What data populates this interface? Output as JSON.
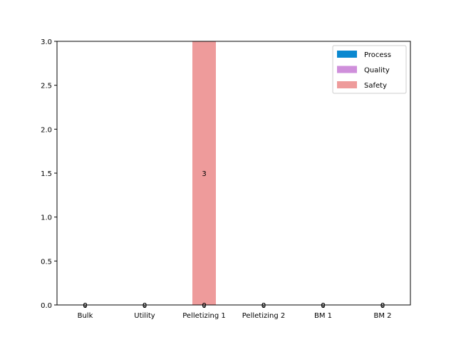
{
  "chart_data": {
    "type": "bar",
    "stacked": true,
    "categories": [
      "Bulk",
      "Utility",
      "Pelletizing 1",
      "Pelletizing 2",
      "BM 1",
      "BM 2"
    ],
    "series": [
      {
        "name": "Process",
        "color": "#0a88d0",
        "values": [
          0,
          0,
          0,
          0,
          0,
          0
        ]
      },
      {
        "name": "Quality",
        "color": "#cf8fdb",
        "values": [
          0,
          0,
          0,
          0,
          0,
          0
        ]
      },
      {
        "name": "Safety",
        "color": "#ee9b9b",
        "values": [
          0,
          0,
          3,
          0,
          0,
          0
        ]
      }
    ],
    "data_labels": [
      [
        "0",
        "0",
        "0",
        "0",
        "0",
        "0"
      ],
      [
        "0",
        "0",
        "0",
        "0",
        "0",
        "0"
      ],
      [
        "0",
        "0",
        "3",
        "0",
        "0",
        "0"
      ]
    ],
    "ylim": [
      0,
      3.0
    ],
    "yticks": [
      "0.0",
      "0.5",
      "1.0",
      "1.5",
      "2.0",
      "2.5",
      "3.0"
    ],
    "legend_position": "top-right",
    "grid": false
  }
}
